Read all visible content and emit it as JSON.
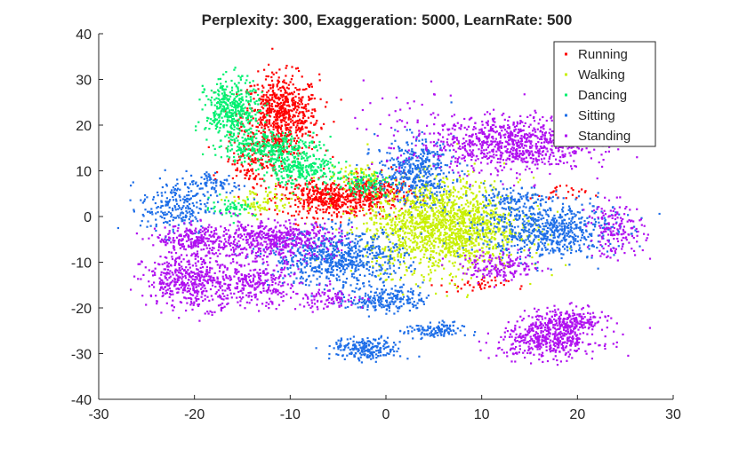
{
  "chart_data": {
    "type": "scatter",
    "title": "Perplexity: 300, Exaggeration: 5000, LearnRate: 500",
    "xlabel": "",
    "ylabel": "",
    "xlim": [
      -30,
      30
    ],
    "ylim": [
      -40,
      40
    ],
    "xticks": [
      -30,
      -20,
      -10,
      0,
      10,
      20,
      30
    ],
    "yticks": [
      40,
      30,
      20,
      10,
      0,
      -10,
      -20,
      -30,
      -40
    ],
    "grid": false,
    "legend_position": "top-right",
    "series": [
      {
        "name": "Running",
        "color": "#ff0000",
        "clusters": [
          {
            "cx": -11,
            "cy": 22,
            "sx": 2.0,
            "sy": 4.5,
            "n": 700
          },
          {
            "cx": -6,
            "cy": 4,
            "sx": 2.5,
            "sy": 2.0,
            "n": 450
          },
          {
            "cx": -1,
            "cy": 5,
            "sx": 1.8,
            "sy": 2.0,
            "n": 220
          },
          {
            "cx": -14,
            "cy": 12,
            "sx": 1.5,
            "sy": 2.5,
            "n": 120
          },
          {
            "cx": 9,
            "cy": -15,
            "sx": 1.8,
            "sy": 0.8,
            "n": 40
          },
          {
            "cx": 18,
            "cy": 5,
            "sx": 1.5,
            "sy": 1.0,
            "n": 25
          }
        ]
      },
      {
        "name": "Walking",
        "color": "#c8f000",
        "clusters": [
          {
            "cx": 6,
            "cy": -2,
            "sx": 4.0,
            "sy": 5.0,
            "n": 1600
          },
          {
            "cx": -13,
            "cy": 3,
            "sx": 1.8,
            "sy": 1.5,
            "n": 90
          },
          {
            "cx": -3,
            "cy": 9,
            "sx": 1.5,
            "sy": 1.2,
            "n": 60
          }
        ]
      },
      {
        "name": "Dancing",
        "color": "#00f070",
        "clusters": [
          {
            "cx": -16,
            "cy": 23,
            "sx": 1.4,
            "sy": 3.5,
            "n": 420
          },
          {
            "cx": -12,
            "cy": 15,
            "sx": 2.5,
            "sy": 1.8,
            "n": 320
          },
          {
            "cx": -9,
            "cy": 10,
            "sx": 2.0,
            "sy": 1.5,
            "n": 220
          },
          {
            "cx": -2,
            "cy": 7,
            "sx": 1.6,
            "sy": 1.5,
            "n": 110
          },
          {
            "cx": -16,
            "cy": 2,
            "sx": 1.2,
            "sy": 1.0,
            "n": 60
          }
        ]
      },
      {
        "name": "Sitting",
        "color": "#1f6fe8",
        "clusters": [
          {
            "cx": -5,
            "cy": -9,
            "sx": 3.5,
            "sy": 3.0,
            "n": 700
          },
          {
            "cx": 17,
            "cy": -3,
            "sx": 3.5,
            "sy": 3.0,
            "n": 650
          },
          {
            "cx": 3,
            "cy": 10,
            "sx": 2.0,
            "sy": 3.5,
            "n": 420
          },
          {
            "cx": 0,
            "cy": -18,
            "sx": 2.0,
            "sy": 1.5,
            "n": 220
          },
          {
            "cx": -2,
            "cy": -29,
            "sx": 1.8,
            "sy": 1.2,
            "n": 220
          },
          {
            "cx": 5,
            "cy": -25,
            "sx": 1.5,
            "sy": 0.9,
            "n": 120
          },
          {
            "cx": -22,
            "cy": 2,
            "sx": 1.8,
            "sy": 3.0,
            "n": 220
          },
          {
            "cx": -18,
            "cy": 7,
            "sx": 1.5,
            "sy": 1.5,
            "n": 90
          },
          {
            "cx": 13,
            "cy": 4,
            "sx": 2.0,
            "sy": 1.5,
            "n": 110
          }
        ]
      },
      {
        "name": "Standing",
        "color": "#b010f0",
        "clusters": [
          {
            "cx": 13,
            "cy": 16,
            "sx": 4.0,
            "sy": 3.0,
            "n": 820
          },
          {
            "cx": 17,
            "cy": -27,
            "sx": 2.6,
            "sy": 2.0,
            "n": 420
          },
          {
            "cx": 19,
            "cy": -23,
            "sx": 2.0,
            "sy": 1.5,
            "n": 230
          },
          {
            "cx": -20,
            "cy": -14,
            "sx": 2.6,
            "sy": 3.0,
            "n": 520
          },
          {
            "cx": -12,
            "cy": -5,
            "sx": 3.5,
            "sy": 2.0,
            "n": 520
          },
          {
            "cx": -20,
            "cy": -5,
            "sx": 2.0,
            "sy": 1.5,
            "n": 220
          },
          {
            "cx": -13,
            "cy": -15,
            "sx": 2.0,
            "sy": 2.5,
            "n": 220
          },
          {
            "cx": 24,
            "cy": -3,
            "sx": 1.5,
            "sy": 3.0,
            "n": 160
          },
          {
            "cx": 12,
            "cy": -11,
            "sx": 2.0,
            "sy": 1.5,
            "n": 160
          },
          {
            "cx": -6,
            "cy": -18,
            "sx": 2.0,
            "sy": 1.2,
            "n": 90
          },
          {
            "cx": 1,
            "cy": 18,
            "sx": 3.0,
            "sy": 5.0,
            "n": 60
          }
        ]
      }
    ]
  }
}
